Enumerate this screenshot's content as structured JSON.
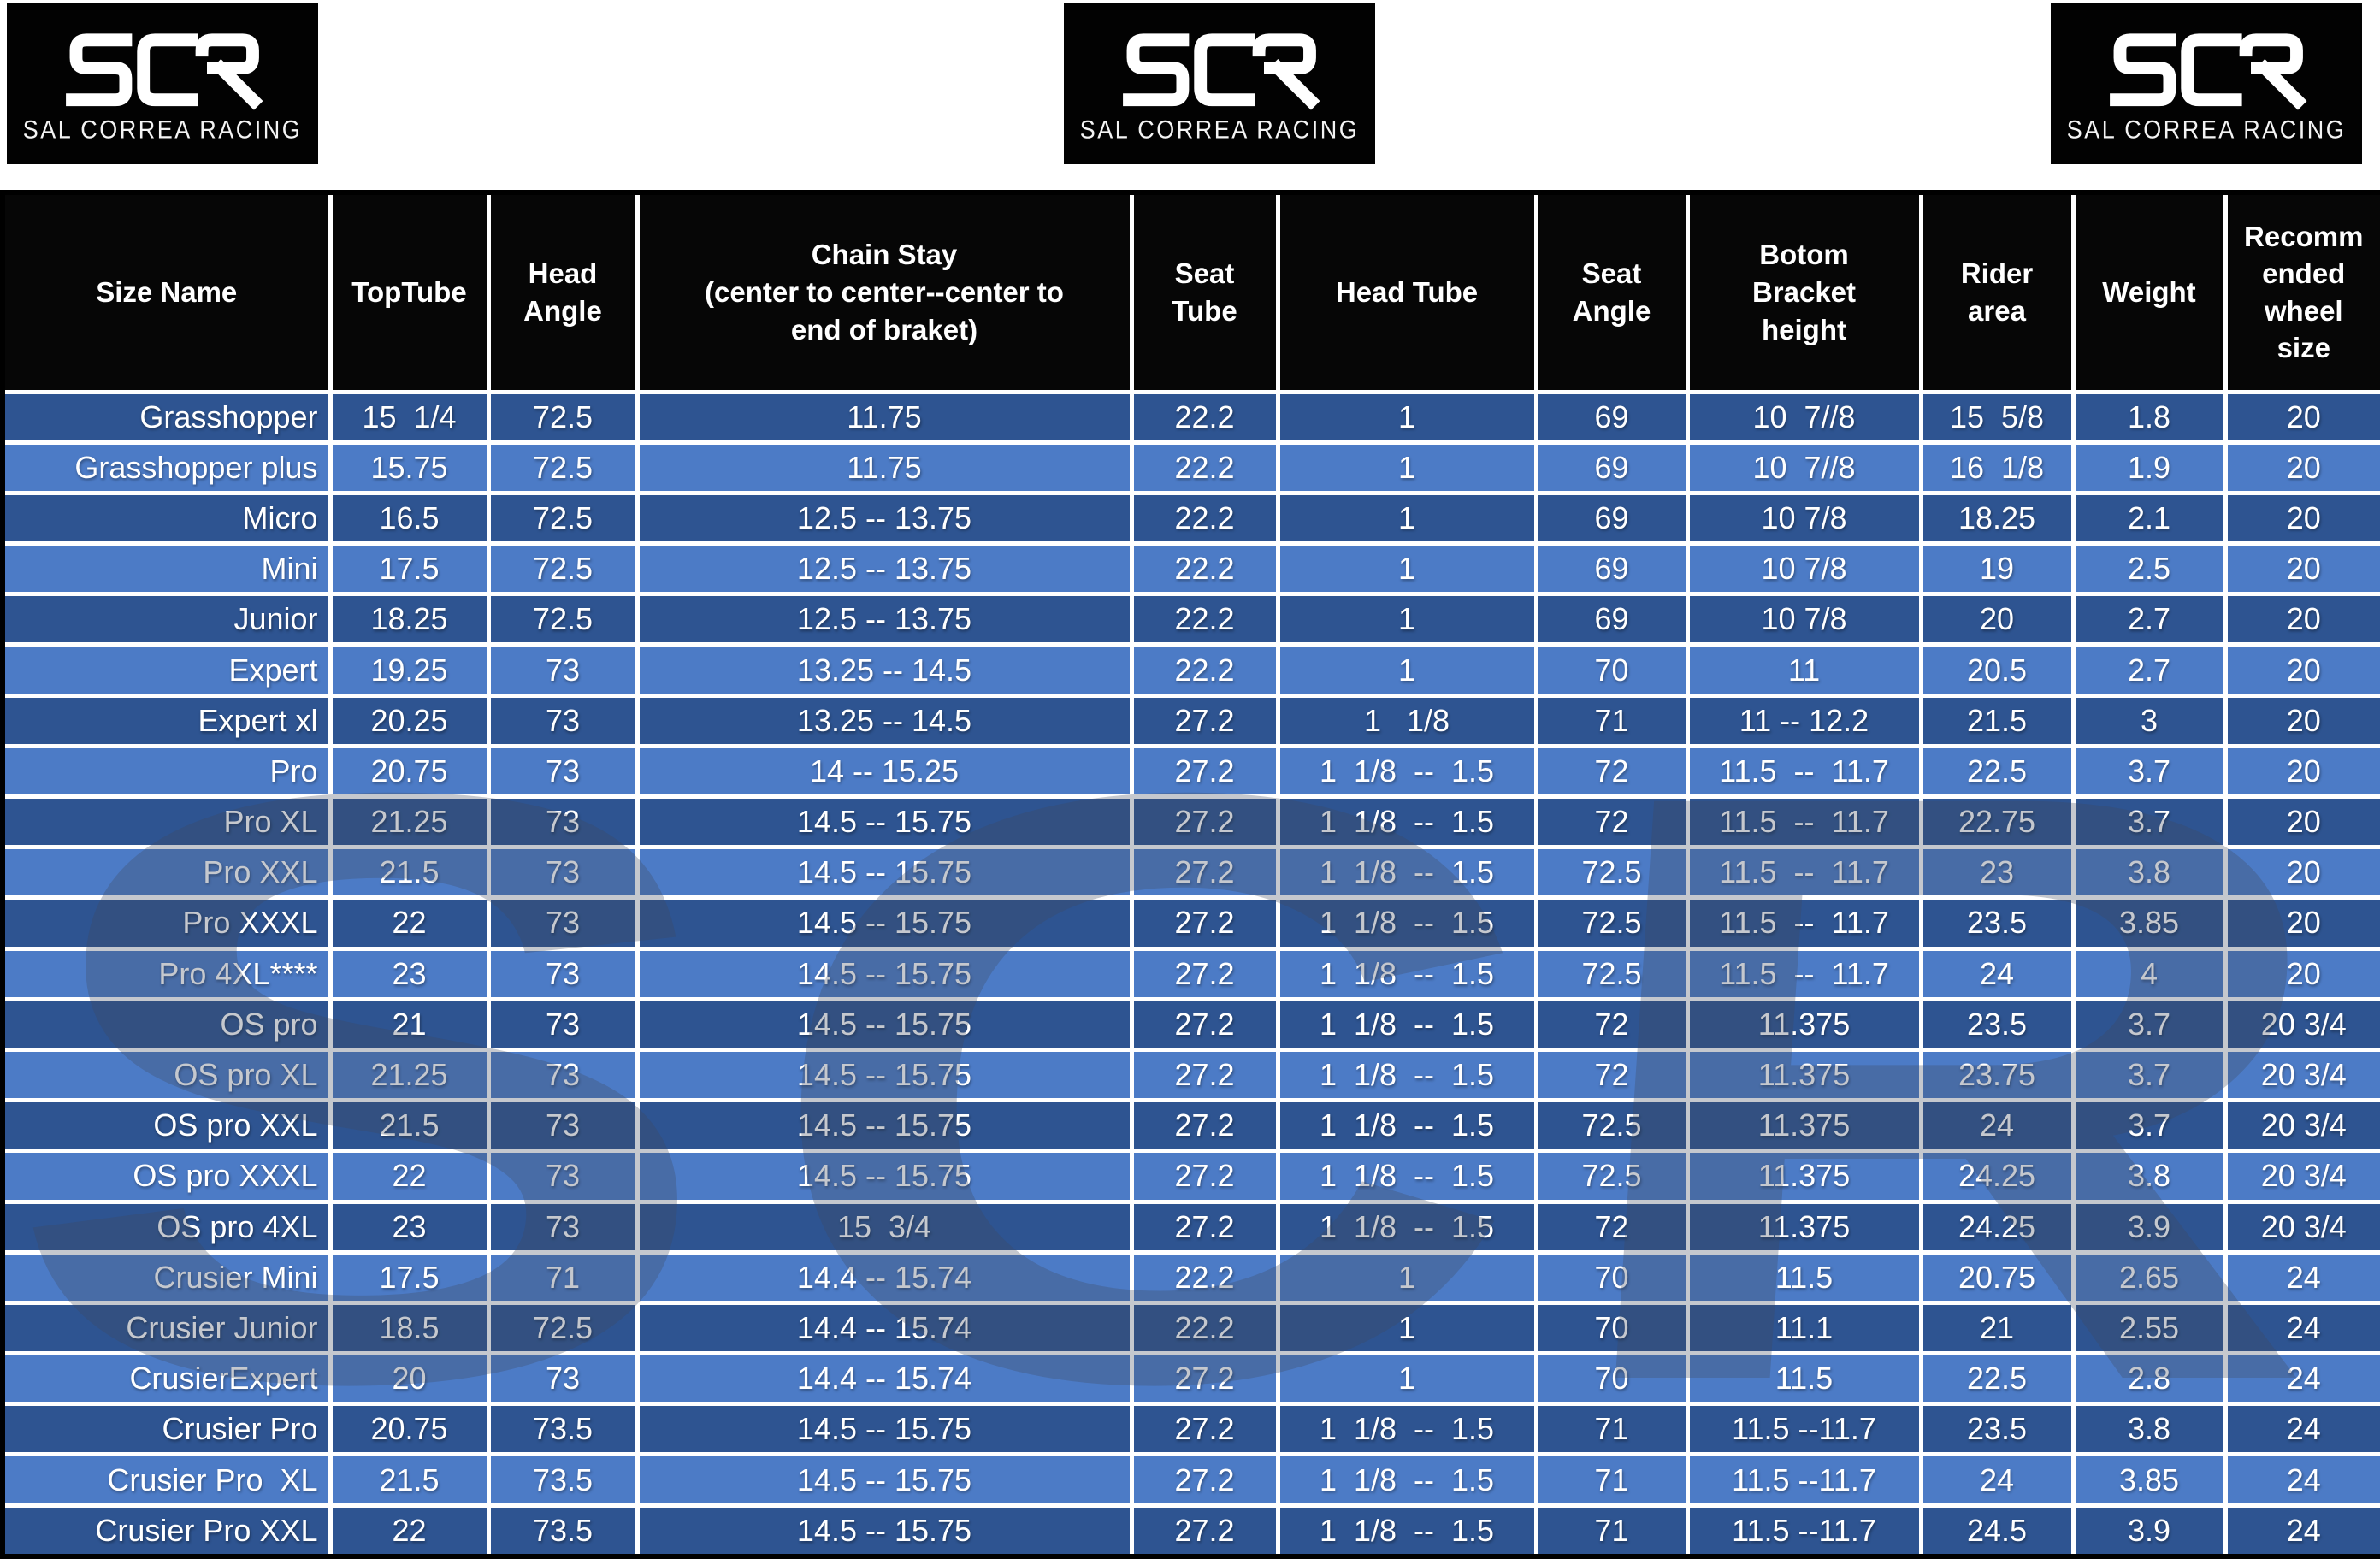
{
  "brand": {
    "mark": "SCR",
    "caption": "SAL CORREA RACING"
  },
  "watermark": {
    "text": "SCR"
  },
  "colors": {
    "header_bg": "#060606",
    "row_dark": "#2E5491",
    "row_light": "#4C7BC6",
    "body_text": "#FFFFFF",
    "logo_bg": "#020202"
  },
  "table": {
    "column_keys": [
      "size_name",
      "top_tube",
      "head_angle",
      "chain_stay",
      "seat_tube",
      "head_tube",
      "seat_angle",
      "bottom_bracket_height",
      "rider_area",
      "weight",
      "recommended_wheel_size"
    ],
    "columns": [
      "Size Name",
      "TopTube",
      "Head\nAngle",
      "Chain Stay\n(center to center--center to\nend of braket)",
      "Seat\nTube",
      "Head Tube",
      "Seat\nAngle",
      "Botom\nBracket\nheight",
      "Rider\narea",
      "Weight",
      "Recomm\nended\nwheel\nsize"
    ],
    "rows": [
      [
        "Grasshopper",
        "15  1/4",
        "72.5",
        "11.75",
        "22.2",
        "1",
        "69",
        "10  7//8",
        "15  5/8",
        "1.8",
        "20"
      ],
      [
        "Grasshopper plus",
        "15.75",
        "72.5",
        "11.75",
        "22.2",
        "1",
        "69",
        "10  7//8",
        "16  1/8",
        "1.9",
        "20"
      ],
      [
        "Micro",
        "16.5",
        "72.5",
        "12.5 -- 13.75",
        "22.2",
        "1",
        "69",
        "10 7/8",
        "18.25",
        "2.1",
        "20"
      ],
      [
        "Mini",
        "17.5",
        "72.5",
        "12.5 -- 13.75",
        "22.2",
        "1",
        "69",
        "10 7/8",
        "19",
        "2.5",
        "20"
      ],
      [
        "Junior",
        "18.25",
        "72.5",
        "12.5 -- 13.75",
        "22.2",
        "1",
        "69",
        "10 7/8",
        "20",
        "2.7",
        "20"
      ],
      [
        "Expert",
        "19.25",
        "73",
        "13.25 -- 14.5",
        "22.2",
        "1",
        "70",
        "11",
        "20.5",
        "2.7",
        "20"
      ],
      [
        "Expert xl",
        "20.25",
        "73",
        "13.25 -- 14.5",
        "27.2",
        "1   1/8",
        "71",
        "11 -- 12.2",
        "21.5",
        "3",
        "20"
      ],
      [
        "Pro",
        "20.75",
        "73",
        "14 -- 15.25",
        "27.2",
        "1  1/8  --  1.5",
        "72",
        "11.5  --  11.7",
        "22.5",
        "3.7",
        "20"
      ],
      [
        "Pro XL",
        "21.25",
        "73",
        "14.5 -- 15.75",
        "27.2",
        "1  1/8  --  1.5",
        "72",
        "11.5  --  11.7",
        "22.75",
        "3.7",
        "20"
      ],
      [
        "Pro XXL",
        "21.5",
        "73",
        "14.5 -- 15.75",
        "27.2",
        "1  1/8  --  1.5",
        "72.5",
        "11.5  --  11.7",
        "23",
        "3.8",
        "20"
      ],
      [
        "Pro XXXL",
        "22",
        "73",
        "14.5 -- 15.75",
        "27.2",
        "1  1/8  --  1.5",
        "72.5",
        "11.5  --  11.7",
        "23.5",
        "3.85",
        "20"
      ],
      [
        "Pro 4XL****",
        "23",
        "73",
        "14.5 -- 15.75",
        "27.2",
        "1  1/8  --  1.5",
        "72.5",
        "11.5  --  11.7",
        "24",
        "4",
        "20"
      ],
      [
        "OS pro",
        "21",
        "73",
        "14.5 -- 15.75",
        "27.2",
        "1  1/8  --  1.5",
        "72",
        "11.375",
        "23.5",
        "3.7",
        "20 3/4"
      ],
      [
        "OS pro XL",
        "21.25",
        "73",
        "14.5 -- 15.75",
        "27.2",
        "1  1/8  --  1.5",
        "72",
        "11.375",
        "23.75",
        "3.7",
        "20 3/4"
      ],
      [
        "OS pro XXL",
        "21.5",
        "73",
        "14.5 -- 15.75",
        "27.2",
        "1  1/8  --  1.5",
        "72.5",
        "11.375",
        "24",
        "3.7",
        "20 3/4"
      ],
      [
        "OS pro XXXL",
        "22",
        "73",
        "14.5 -- 15.75",
        "27.2",
        "1  1/8  --  1.5",
        "72.5",
        "11.375",
        "24.25",
        "3.8",
        "20 3/4"
      ],
      [
        "OS pro 4XL",
        "23",
        "73",
        "15  3/4",
        "27.2",
        "1  1/8  --  1.5",
        "72",
        "11.375",
        "24.25",
        "3.9",
        "20 3/4"
      ],
      [
        "Crusier Mini",
        "17.5",
        "71",
        "14.4 -- 15.74",
        "22.2",
        "1",
        "70",
        "11.5",
        "20.75",
        "2.65",
        "24"
      ],
      [
        "Crusier Junior",
        "18.5",
        "72.5",
        "14.4 -- 15.74",
        "22.2",
        "1",
        "70",
        "11.1",
        "21",
        "2.55",
        "24"
      ],
      [
        "CrusierExpert",
        "20",
        "73",
        "14.4 -- 15.74",
        "27.2",
        "1",
        "70",
        "11.5",
        "22.5",
        "2.8",
        "24"
      ],
      [
        "Crusier Pro",
        "20.75",
        "73.5",
        "14.5 -- 15.75",
        "27.2",
        "1  1/8  --  1.5",
        "71",
        "11.5 --11.7",
        "23.5",
        "3.8",
        "24"
      ],
      [
        "Crusier Pro  XL",
        "21.5",
        "73.5",
        "14.5 -- 15.75",
        "27.2",
        "1  1/8  --  1.5",
        "71",
        "11.5 --11.7",
        "24",
        "3.85",
        "24"
      ],
      [
        "Crusier Pro XXL",
        "22",
        "73.5",
        "14.5 -- 15.75",
        "27.2",
        "1  1/8  --  1.5",
        "71",
        "11.5 --11.7",
        "24.5",
        "3.9",
        "24"
      ]
    ]
  }
}
